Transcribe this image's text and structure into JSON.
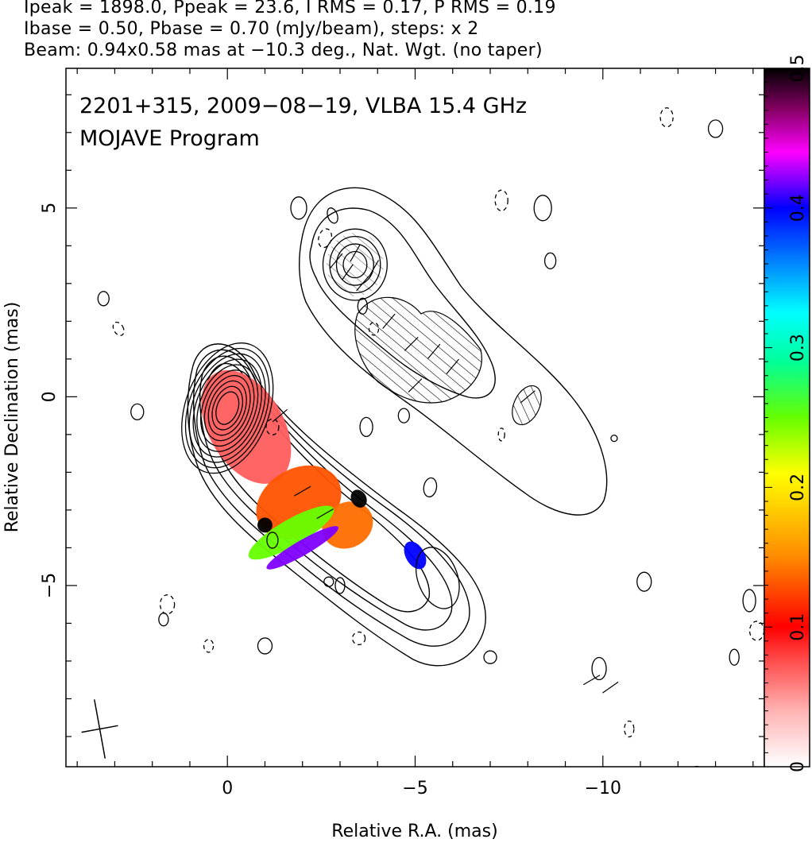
{
  "header": {
    "line1": "Ipeak = 1898.0, Ppeak = 23.6, I RMS = 0.17, P RMS = 0.19",
    "line2": "Ibase = 0.50, Pbase = 0.70 (mJy/beam), steps: x 2",
    "line3": "Beam: 0.94x0.58 mas at −10.3 deg., Nat. Wgt. (no taper)"
  },
  "plot_label": {
    "line1": "2201+315, 2009−08−19, VLBA 15.4 GHz",
    "line2": "MOJAVE Program"
  },
  "chart_data": {
    "type": "heatmap",
    "xlabel": "Relative R.A. (mas)",
    "ylabel": "Relative Declination (mas)",
    "xlim": [
      4.3,
      -14.3
    ],
    "ylim": [
      -9.8,
      8.7
    ],
    "x_ticks": [
      0,
      -5,
      -10
    ],
    "x_tick_labels": [
      "0",
      "−5",
      "−10"
    ],
    "y_ticks": [
      5,
      0,
      -5
    ],
    "y_tick_labels": [
      "5",
      "0",
      "−5"
    ],
    "colorbar": {
      "range": [
        0,
        0.5
      ],
      "ticks": [
        0,
        0.1,
        0.2,
        0.3,
        0.4,
        0.5
      ],
      "tick_labels": [
        "0",
        "0.1",
        "0.2",
        "0.3",
        "0.4",
        "0.5"
      ],
      "colors": [
        "#ffffff",
        "#ff9999",
        "#ff0000",
        "#ff8800",
        "#ffff00",
        "#00ff00",
        "#00ffff",
        "#0000ff",
        "#ff00ff",
        "#000000"
      ]
    },
    "beam": {
      "major_mas": 0.94,
      "minor_mas": 0.58,
      "pa_deg": -10.3
    },
    "total_intensity_contours": [
      {
        "name": "core",
        "cx": 0.0,
        "cy": -0.3,
        "rx_list": [
          0.45,
          0.6,
          0.75,
          0.9,
          1.05,
          1.2,
          1.35,
          1.5,
          1.65,
          1.8
        ],
        "ratio": 0.62,
        "pa": 20
      },
      {
        "name": "counterjet-knot",
        "cx": -3.4,
        "cy": 3.5,
        "rx_list": [
          0.35,
          0.55,
          0.75,
          0.95
        ],
        "ratio": 0.9,
        "pa": 0
      }
    ],
    "fractional_polarization_regions": [
      {
        "name": "core-red",
        "cx": -0.5,
        "cy": -0.8,
        "rx": 1.0,
        "ry": 1.65,
        "value": 0.07
      },
      {
        "name": "inner-jet-orange",
        "cx": -1.9,
        "cy": -2.8,
        "rx": 1.2,
        "ry": 0.9,
        "value": 0.13
      },
      {
        "name": "mid-jet-orange",
        "cx": -3.2,
        "cy": -3.4,
        "rx": 0.7,
        "ry": 0.6,
        "value": 0.14
      },
      {
        "name": "green-band",
        "cx": -1.7,
        "cy": -3.6,
        "rx": 1.3,
        "ry": 0.35,
        "value": 0.25
      },
      {
        "name": "blue-edge",
        "cx": -2.0,
        "cy": -4.0,
        "rx": 1.1,
        "ry": 0.2,
        "value": 0.42
      },
      {
        "name": "outer-knot",
        "cx": -5.0,
        "cy": -4.2,
        "rx": 0.25,
        "ry": 0.4,
        "value": 0.4
      },
      {
        "name": "black-spot-1",
        "cx": -3.5,
        "cy": -2.7,
        "rx": 0.2,
        "ry": 0.25,
        "value": 0.5
      },
      {
        "name": "black-spot-2",
        "cx": -1.0,
        "cy": -3.4,
        "rx": 0.2,
        "ry": 0.2,
        "value": 0.5
      }
    ]
  }
}
